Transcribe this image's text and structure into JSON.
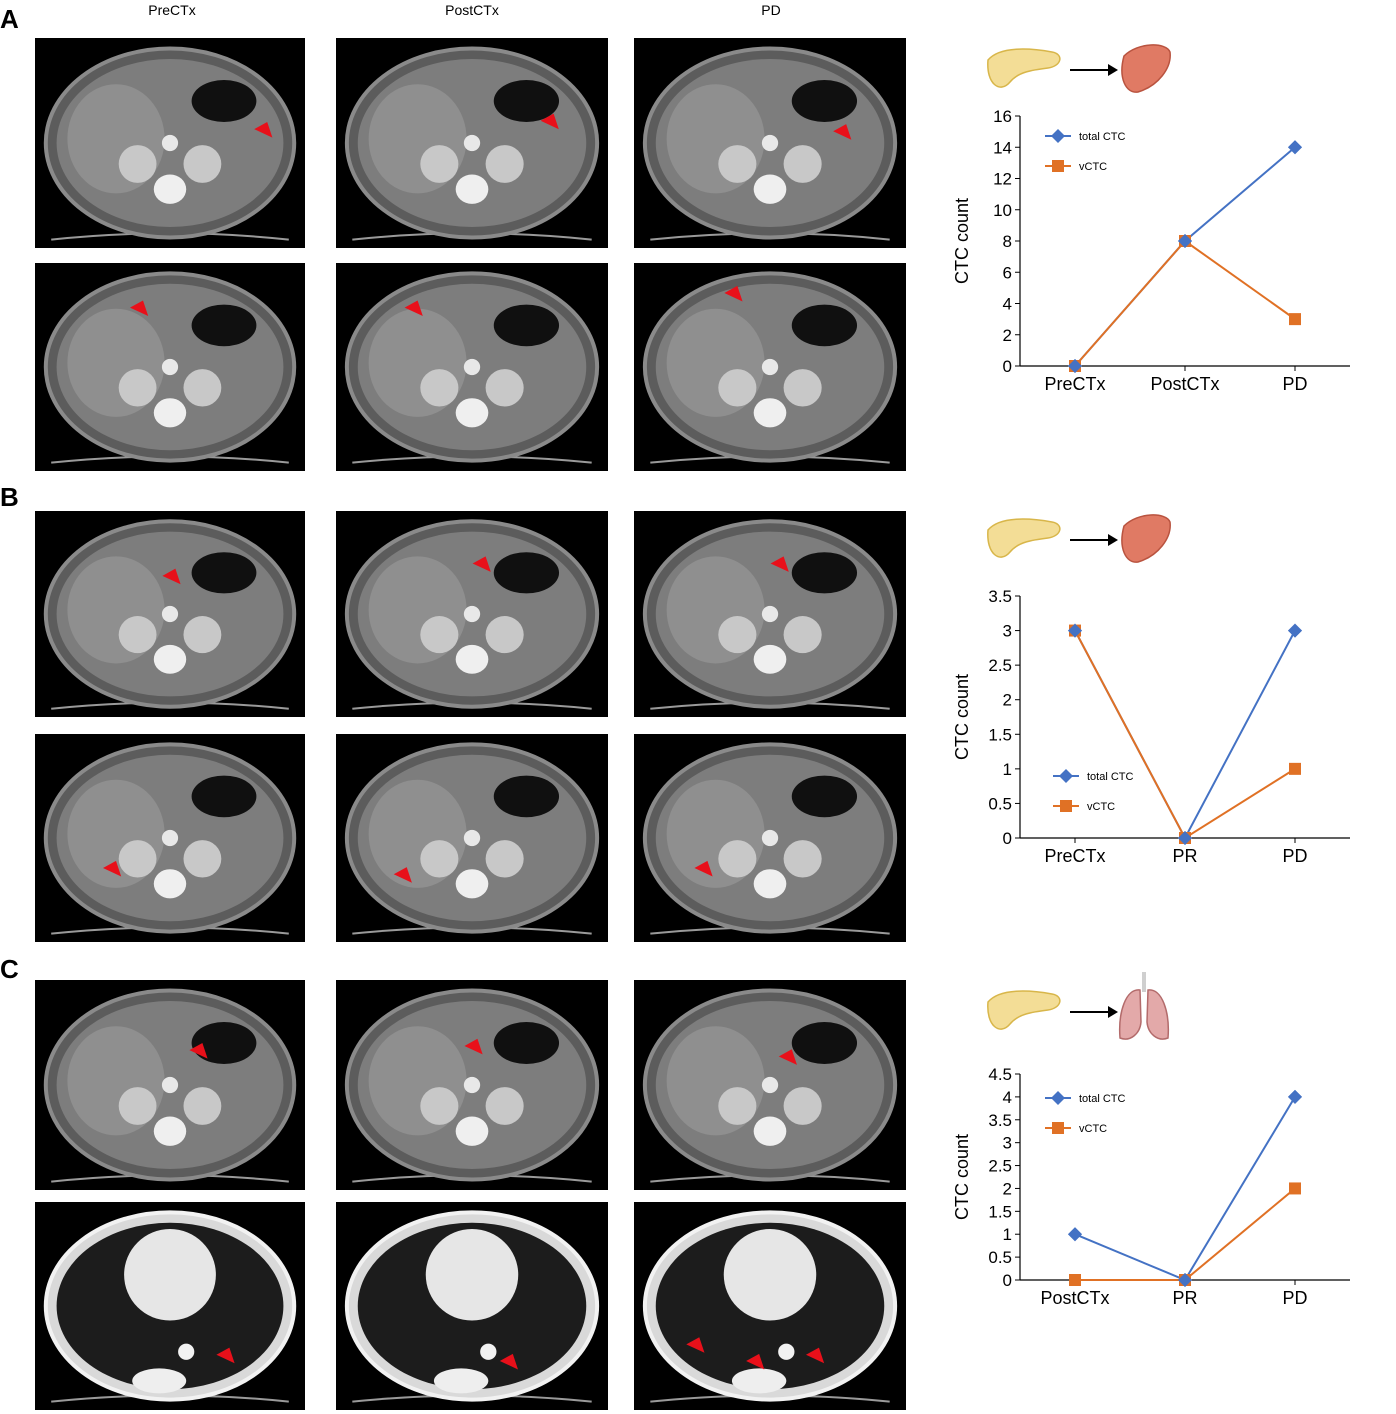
{
  "columns": [
    "PreCTx",
    "PostCTx",
    "PD"
  ],
  "panels": [
    {
      "letter": "A",
      "organs": [
        "pancreas-icon",
        "liver-icon"
      ]
    },
    {
      "letter": "B",
      "organs": [
        "pancreas-icon",
        "liver-icon"
      ]
    },
    {
      "letter": "C",
      "organs": [
        "pancreas-icon",
        "lung-icon"
      ]
    }
  ],
  "colors": {
    "total": "#4472C4",
    "vctc": "#E07125",
    "arrowhead": "#E8101A"
  },
  "chart_data": [
    {
      "type": "line",
      "categories": [
        "PreCTx",
        "PostCTx",
        "PD"
      ],
      "series": [
        {
          "name": "total CTC",
          "values": [
            0,
            8,
            14
          ]
        },
        {
          "name": "vCTC",
          "values": [
            0,
            8,
            3
          ]
        }
      ],
      "ylabel": "CTC count",
      "ylim": [
        0,
        16
      ],
      "yticks": [
        "0",
        "2",
        "4",
        "6",
        "8",
        "10",
        "12",
        "14",
        "16"
      ],
      "legend": "top-left"
    },
    {
      "type": "line",
      "categories": [
        "PreCTx",
        "PR",
        "PD"
      ],
      "series": [
        {
          "name": "total CTC",
          "values": [
            3,
            0,
            3
          ]
        },
        {
          "name": "vCTC",
          "values": [
            3,
            0,
            1
          ]
        }
      ],
      "ylabel": "CTC count",
      "ylim": [
        0,
        3.5
      ],
      "yticks": [
        "0",
        "0.5",
        "1",
        "1.5",
        "2",
        "2.5",
        "3",
        "3.5"
      ],
      "legend": "bottom-left"
    },
    {
      "type": "line",
      "categories": [
        "PostCTx",
        "PR",
        "PD"
      ],
      "series": [
        {
          "name": "total CTC",
          "values": [
            1,
            0,
            4
          ]
        },
        {
          "name": "vCTC",
          "values": [
            0,
            0,
            2
          ]
        }
      ],
      "ylabel": "CTC count",
      "ylim": [
        0,
        4.5
      ],
      "yticks": [
        "0",
        "0.5",
        "1",
        "1.5",
        "2",
        "2.5",
        "3",
        "3.5",
        "4",
        "4.5"
      ],
      "legend": "top-left"
    }
  ]
}
